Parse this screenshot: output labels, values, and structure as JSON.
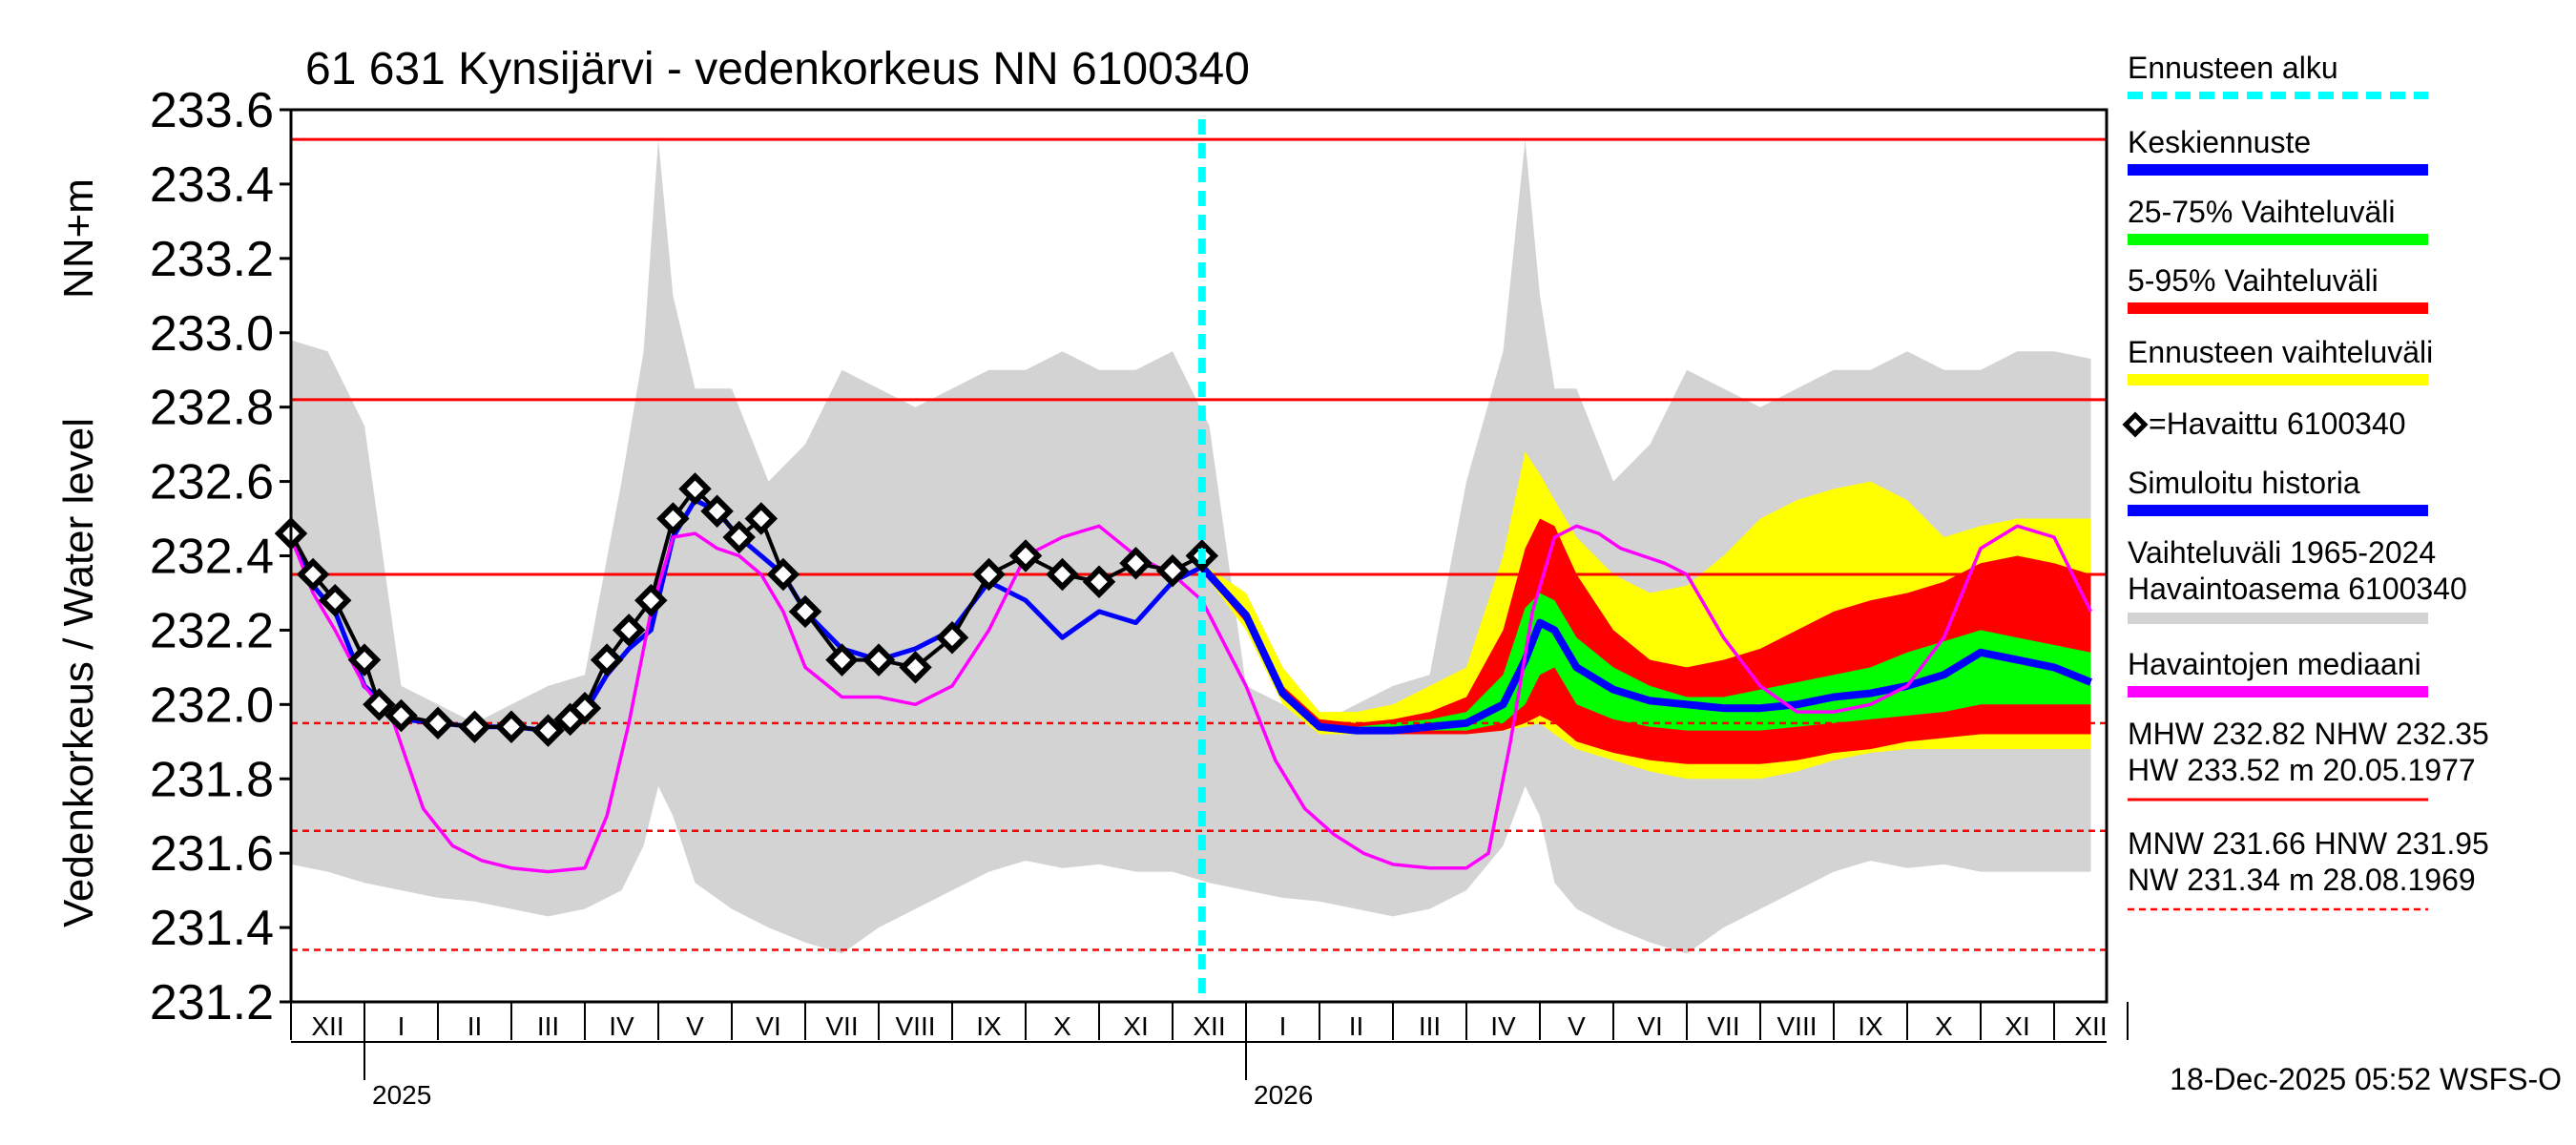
{
  "chart_data": {
    "type": "line",
    "title": "61 631 Kynsijärvi - vedenkorkeus NN 6100340",
    "ylabel": "Vedenkorkeus / Water level",
    "ylabel_unit": "NN+m",
    "ylim": [
      231.2,
      233.6
    ],
    "yticks": [
      "233.6",
      "233.4",
      "233.2",
      "233.0",
      "232.8",
      "232.6",
      "232.4",
      "232.2",
      "232.0",
      "231.8",
      "231.6",
      "231.4",
      "231.2"
    ],
    "x_start_month_index": 0,
    "months": [
      "XII",
      "I",
      "II",
      "III",
      "IV",
      "V",
      "VI",
      "VII",
      "VIII",
      "IX",
      "X",
      "XI",
      "XII",
      "I",
      "II",
      "III",
      "IV",
      "V",
      "VI",
      "VII",
      "VIII",
      "IX",
      "X",
      "XI",
      "XII"
    ],
    "years": [
      {
        "label": "2025",
        "month_index": 1
      },
      {
        "label": "2026",
        "month_index": 13
      }
    ],
    "forecast_start_month": 12.4,
    "reference_lines": {
      "solid": [
        233.52,
        232.82,
        232.35
      ],
      "dashed": [
        231.95,
        231.66,
        231.34
      ]
    },
    "series": [
      {
        "name": "Vaihteluväli 1965-2024",
        "color": "#d3d3d3",
        "x": [
          0,
          0.5,
          1.0,
          1.5,
          2.0,
          2.5,
          3.0,
          3.5,
          4.0,
          4.5,
          4.8,
          5.0,
          5.2,
          5.5,
          6.0,
          6.5,
          7.0,
          7.5,
          8.0,
          8.5,
          9.0,
          9.5,
          10.0,
          10.5,
          11.0,
          11.5,
          12.0,
          12.5,
          13.0,
          13.5,
          14.0,
          14.5,
          15.0,
          15.5,
          16.0,
          16.5,
          16.8,
          17.0,
          17.2,
          17.5,
          18.0,
          18.5,
          19.0,
          19.5,
          20.0,
          20.5,
          21.0,
          21.5,
          22.0,
          22.5,
          23.0,
          23.5,
          24.0,
          24.5
        ],
        "upper": [
          232.98,
          232.95,
          232.75,
          232.05,
          232.0,
          231.95,
          232.0,
          232.05,
          232.08,
          232.6,
          232.95,
          233.52,
          233.1,
          232.85,
          232.85,
          232.6,
          232.7,
          232.9,
          232.85,
          232.8,
          232.85,
          232.9,
          232.9,
          232.95,
          232.9,
          232.9,
          232.95,
          232.75,
          232.05,
          232.0,
          231.95,
          232.0,
          232.05,
          232.08,
          232.6,
          232.95,
          233.52,
          233.1,
          232.85,
          232.85,
          232.6,
          232.7,
          232.9,
          232.85,
          232.8,
          232.85,
          232.9,
          232.9,
          232.95,
          232.9,
          232.9,
          232.95,
          232.95,
          232.93
        ],
        "lower": [
          231.57,
          231.55,
          231.52,
          231.5,
          231.48,
          231.47,
          231.45,
          231.43,
          231.45,
          231.5,
          231.62,
          231.78,
          231.7,
          231.52,
          231.45,
          231.4,
          231.36,
          231.33,
          231.4,
          231.45,
          231.5,
          231.55,
          231.58,
          231.56,
          231.57,
          231.55,
          231.55,
          231.52,
          231.5,
          231.48,
          231.47,
          231.45,
          231.43,
          231.45,
          231.5,
          231.62,
          231.78,
          231.7,
          231.52,
          231.45,
          231.4,
          231.36,
          231.33,
          231.4,
          231.45,
          231.5,
          231.55,
          231.58,
          231.56,
          231.57,
          231.55,
          231.55,
          231.55,
          231.55
        ]
      },
      {
        "name": "Ennusteen vaihteluväli",
        "color": "#ffff00",
        "x": [
          12.4,
          13.0,
          13.5,
          14.0,
          14.5,
          15.0,
          15.5,
          16.0,
          16.5,
          16.8,
          17.0,
          17.2,
          17.5,
          18.0,
          18.5,
          19.0,
          19.5,
          20.0,
          20.5,
          21.0,
          21.5,
          22.0,
          22.5,
          23.0,
          23.5,
          24.0,
          24.5
        ],
        "upper": [
          232.38,
          232.3,
          232.1,
          231.98,
          231.98,
          232.0,
          232.05,
          232.1,
          232.4,
          232.68,
          232.62,
          232.55,
          232.45,
          232.35,
          232.3,
          232.32,
          232.4,
          232.5,
          232.55,
          232.58,
          232.6,
          232.55,
          232.45,
          232.48,
          232.5,
          232.5,
          232.5
        ],
        "lower": [
          232.36,
          232.2,
          232.0,
          231.92,
          231.92,
          231.92,
          231.92,
          231.92,
          231.93,
          231.94,
          231.95,
          231.92,
          231.88,
          231.85,
          231.82,
          231.8,
          231.8,
          231.8,
          231.82,
          231.85,
          231.87,
          231.88,
          231.88,
          231.88,
          231.88,
          231.88,
          231.88
        ]
      },
      {
        "name": "5-95% Vaihteluväli",
        "color": "#ff0000",
        "x": [
          12.4,
          13.0,
          13.5,
          14.0,
          14.5,
          15.0,
          15.5,
          16.0,
          16.5,
          16.8,
          17.0,
          17.2,
          17.5,
          18.0,
          18.5,
          19.0,
          19.5,
          20.0,
          20.5,
          21.0,
          21.5,
          22.0,
          22.5,
          23.0,
          23.5,
          24.0,
          24.5
        ],
        "upper": [
          232.37,
          232.25,
          232.05,
          231.96,
          231.95,
          231.96,
          231.98,
          232.02,
          232.2,
          232.42,
          232.5,
          232.48,
          232.35,
          232.2,
          232.12,
          232.1,
          232.12,
          232.15,
          232.2,
          232.25,
          232.28,
          232.3,
          232.33,
          232.38,
          232.4,
          232.38,
          232.35
        ],
        "lower": [
          232.36,
          232.22,
          232.02,
          231.93,
          231.92,
          231.92,
          231.92,
          231.92,
          231.93,
          231.95,
          231.97,
          231.95,
          231.9,
          231.87,
          231.85,
          231.84,
          231.84,
          231.84,
          231.85,
          231.87,
          231.88,
          231.9,
          231.91,
          231.92,
          231.92,
          231.92,
          231.92
        ]
      },
      {
        "name": "25-75% Vaihteluväli",
        "color": "#00ff00",
        "x": [
          12.4,
          13.0,
          13.5,
          14.0,
          14.5,
          15.0,
          15.5,
          16.0,
          16.5,
          16.8,
          17.0,
          17.2,
          17.5,
          18.0,
          18.5,
          19.0,
          19.5,
          20.0,
          20.5,
          21.0,
          21.5,
          22.0,
          22.5,
          23.0,
          23.5,
          24.0,
          24.5
        ],
        "upper": [
          232.36,
          232.24,
          232.03,
          231.95,
          231.94,
          231.95,
          231.96,
          231.98,
          232.08,
          232.26,
          232.3,
          232.28,
          232.18,
          232.1,
          232.05,
          232.02,
          232.02,
          232.04,
          232.06,
          232.08,
          232.1,
          232.14,
          232.17,
          232.2,
          232.18,
          232.16,
          232.14
        ],
        "lower": [
          232.36,
          232.23,
          232.02,
          231.93,
          231.93,
          231.93,
          231.93,
          231.93,
          231.95,
          232.0,
          232.08,
          232.1,
          232.0,
          231.96,
          231.94,
          231.93,
          231.93,
          231.93,
          231.94,
          231.95,
          231.96,
          231.97,
          231.98,
          232.0,
          232.0,
          232.0,
          232.0
        ]
      },
      {
        "name": "Keskiennuste",
        "color": "#0000ff",
        "x": [
          12.4,
          13.0,
          13.5,
          14.0,
          14.5,
          15.0,
          15.5,
          16.0,
          16.5,
          16.8,
          17.0,
          17.2,
          17.5,
          18.0,
          18.5,
          19.0,
          19.5,
          20.0,
          20.5,
          21.0,
          21.5,
          22.0,
          22.5,
          23.0,
          23.5,
          24.0,
          24.5
        ],
        "y": [
          232.37,
          232.24,
          232.03,
          231.94,
          231.93,
          231.93,
          231.94,
          231.95,
          232.0,
          232.12,
          232.22,
          232.2,
          232.1,
          232.04,
          232.01,
          232.0,
          231.99,
          231.99,
          232.0,
          232.02,
          232.03,
          232.05,
          232.08,
          232.14,
          232.12,
          232.1,
          232.06
        ]
      },
      {
        "name": "Simuloitu historia",
        "color": "#0000ff",
        "x": [
          0,
          0.3,
          0.6,
          1.0,
          1.5,
          2.0,
          2.5,
          3.0,
          3.5,
          3.8,
          4.0,
          4.3,
          4.6,
          4.9,
          5.2,
          5.5,
          5.8,
          6.1,
          6.4,
          6.7,
          7.0,
          7.5,
          8.0,
          8.5,
          9.0,
          9.5,
          10.0,
          10.5,
          11.0,
          11.5,
          12.0,
          12.4
        ],
        "y": [
          232.45,
          232.32,
          232.25,
          232.05,
          231.96,
          231.95,
          231.94,
          231.94,
          231.93,
          231.95,
          231.98,
          232.08,
          232.15,
          232.2,
          232.45,
          232.55,
          232.52,
          232.45,
          232.4,
          232.35,
          232.25,
          232.15,
          232.12,
          232.15,
          232.2,
          232.33,
          232.28,
          232.18,
          232.25,
          232.22,
          232.33,
          232.37
        ]
      },
      {
        "name": "Havaintojen mediaani",
        "color": "#ff00ff",
        "x": [
          0,
          0.3,
          0.6,
          1.0,
          1.4,
          1.8,
          2.2,
          2.6,
          3.0,
          3.5,
          4.0,
          4.3,
          4.6,
          4.9,
          5.2,
          5.5,
          5.8,
          6.1,
          6.4,
          6.7,
          7.0,
          7.5,
          8.0,
          8.5,
          9.0,
          9.5,
          10.0,
          10.5,
          11.0,
          11.5,
          12.0,
          12.4,
          13.0,
          13.4,
          13.8,
          14.2,
          14.6,
          15.0,
          15.5,
          16.0,
          16.3,
          16.6,
          16.9,
          17.2,
          17.5,
          17.8,
          18.1,
          18.4,
          18.7,
          19.0,
          19.5,
          20.0,
          20.5,
          21.0,
          21.5,
          22.0,
          22.5,
          23.0,
          23.5,
          24.0,
          24.5
        ],
        "y": [
          232.45,
          232.3,
          232.2,
          232.05,
          231.95,
          231.72,
          231.62,
          231.58,
          231.56,
          231.55,
          231.56,
          231.7,
          231.95,
          232.25,
          232.45,
          232.46,
          232.42,
          232.4,
          232.35,
          232.25,
          232.1,
          232.02,
          232.02,
          232.0,
          232.05,
          232.2,
          232.4,
          232.45,
          232.48,
          232.4,
          232.35,
          232.28,
          232.05,
          231.85,
          231.72,
          231.65,
          231.6,
          231.57,
          231.56,
          231.56,
          231.6,
          231.9,
          232.25,
          232.45,
          232.48,
          232.46,
          232.42,
          232.4,
          232.38,
          232.35,
          232.18,
          232.05,
          231.98,
          231.98,
          232.0,
          232.05,
          232.18,
          232.42,
          232.48,
          232.45,
          232.25
        ]
      },
      {
        "name": "Havaittu 6100340",
        "color": "#000000",
        "x": [
          0,
          0.3,
          0.6,
          1.0,
          1.2,
          1.5,
          2.0,
          2.5,
          3.0,
          3.5,
          3.8,
          4.0,
          4.3,
          4.6,
          4.9,
          5.2,
          5.5,
          5.8,
          6.1,
          6.4,
          6.7,
          7.0,
          7.5,
          8.0,
          8.5,
          9.0,
          9.5,
          10.0,
          10.5,
          11.0,
          11.5,
          12.0,
          12.4
        ],
        "y": [
          232.46,
          232.35,
          232.28,
          232.12,
          232.0,
          231.97,
          231.95,
          231.94,
          231.94,
          231.93,
          231.96,
          231.99,
          232.12,
          232.2,
          232.28,
          232.5,
          232.58,
          232.52,
          232.45,
          232.5,
          232.35,
          232.25,
          232.12,
          232.12,
          232.1,
          232.18,
          232.35,
          232.4,
          232.35,
          232.33,
          232.38,
          232.36,
          232.4
        ]
      }
    ]
  },
  "legend": [
    {
      "label": "Ennusteen alku",
      "color": "#00ffff",
      "style": "dotted"
    },
    {
      "label": "Keskiennuste",
      "color": "#0000ff",
      "style": "solid"
    },
    {
      "label": "25-75% Vaihteluväli",
      "color": "#00ff00",
      "style": "solid"
    },
    {
      "label": "5-95% Vaihteluväli",
      "color": "#ff0000",
      "style": "solid"
    },
    {
      "label": "Ennusteen vaihteluväli",
      "color": "#ffff00",
      "style": "solid"
    },
    {
      "label": "=Havaittu 6100340",
      "color": "#000000",
      "style": "marker"
    },
    {
      "label": "Simuloitu historia",
      "color": "#0000ff",
      "style": "solid"
    },
    {
      "label": "Vaihteluväli 1965-2024",
      "label2": "Havaintoasema 6100340",
      "color": "#d3d3d3",
      "style": "solid"
    },
    {
      "label": "Havaintojen mediaani",
      "color": "#ff00ff",
      "style": "solid"
    },
    {
      "label": "MHW 232.82 NHW 232.35",
      "label2": "HW 233.52 m 20.05.1977",
      "color": "#ff0000",
      "style": "solid"
    },
    {
      "label": "MNW 231.66 HNW 231.95",
      "label2": "NW 231.34 m 28.08.1969",
      "color": "#ff0000",
      "style": "dashed"
    }
  ],
  "timestamp": "18-Dec-2025 05:52 WSFS-O"
}
